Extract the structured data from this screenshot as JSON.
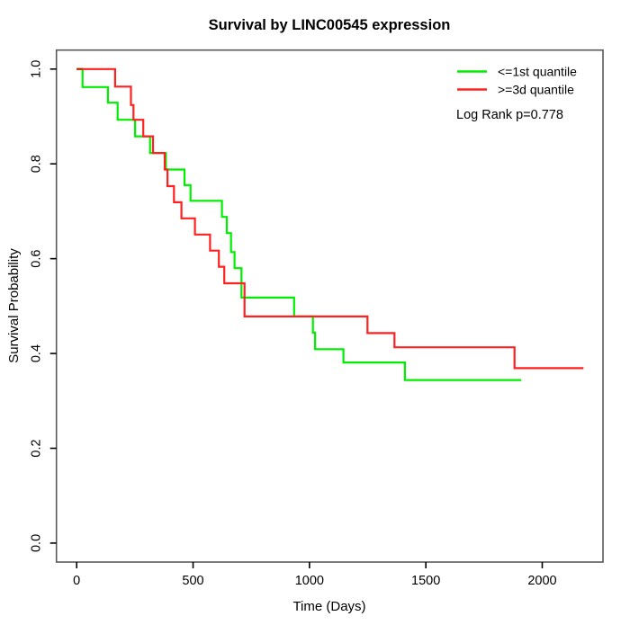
{
  "title": "Survival by LINC00545 expression",
  "axes": {
    "x": {
      "label": "Time (Days)",
      "tick_values": [
        0,
        500,
        1000,
        1500,
        2000
      ],
      "tick_labels": [
        "0",
        "500",
        "1000",
        "1500",
        "2000"
      ],
      "usr_range": [
        -87,
        2261
      ]
    },
    "y": {
      "label": "Survival Probability",
      "tick_values": [
        0.0,
        0.2,
        0.4,
        0.6,
        0.8,
        1.0
      ],
      "tick_labels": [
        "0.0",
        "0.2",
        "0.4",
        "0.6",
        "0.8",
        "1.0"
      ],
      "usr_range": [
        -0.04,
        1.04
      ]
    }
  },
  "legend": {
    "position": "top-right",
    "items": [
      {
        "label": "<=1st quantile",
        "color": "#00ee00"
      },
      {
        "label": ">=3d quantile",
        "color": "#ff2020"
      }
    ]
  },
  "annotation": {
    "log_rank": "Log Rank p=0.778"
  },
  "chart_data": {
    "type": "line",
    "subtype": "kaplan-meier-step",
    "title": "Survival by LINC00545 expression",
    "xlabel": "Time (Days)",
    "ylabel": "Survival Probability",
    "xlim": [
      0,
      2200
    ],
    "ylim": [
      0,
      1
    ],
    "grid": false,
    "legend_position": "top-right",
    "log_rank_p": 0.778,
    "series": [
      {
        "name": "<=1st quantile",
        "color": "#00ee00",
        "start": [
          0,
          1.0
        ],
        "event_times": [
          25,
          134,
          176,
          251,
          315,
          383,
          463,
          489,
          624,
          645,
          663,
          678,
          708,
          934,
          1015,
          1024,
          1146,
          1410
        ],
        "survival": [
          0.962,
          0.929,
          0.893,
          0.858,
          0.823,
          0.788,
          0.755,
          0.722,
          0.688,
          0.654,
          0.614,
          0.58,
          0.518,
          0.478,
          0.444,
          0.409,
          0.381,
          0.344
        ],
        "end_time": 1910
      },
      {
        "name": ">=3d quantile",
        "color": "#ff2020",
        "start": [
          0,
          1.0
        ],
        "event_times": [
          165,
          233,
          244,
          286,
          328,
          378,
          390,
          418,
          450,
          508,
          573,
          611,
          634,
          721,
          1249,
          1365,
          1881
        ],
        "survival": [
          0.963,
          0.924,
          0.893,
          0.858,
          0.823,
          0.788,
          0.753,
          0.719,
          0.685,
          0.651,
          0.617,
          0.583,
          0.548,
          0.478,
          0.443,
          0.413,
          0.369
        ],
        "end_time": 2177
      }
    ]
  }
}
